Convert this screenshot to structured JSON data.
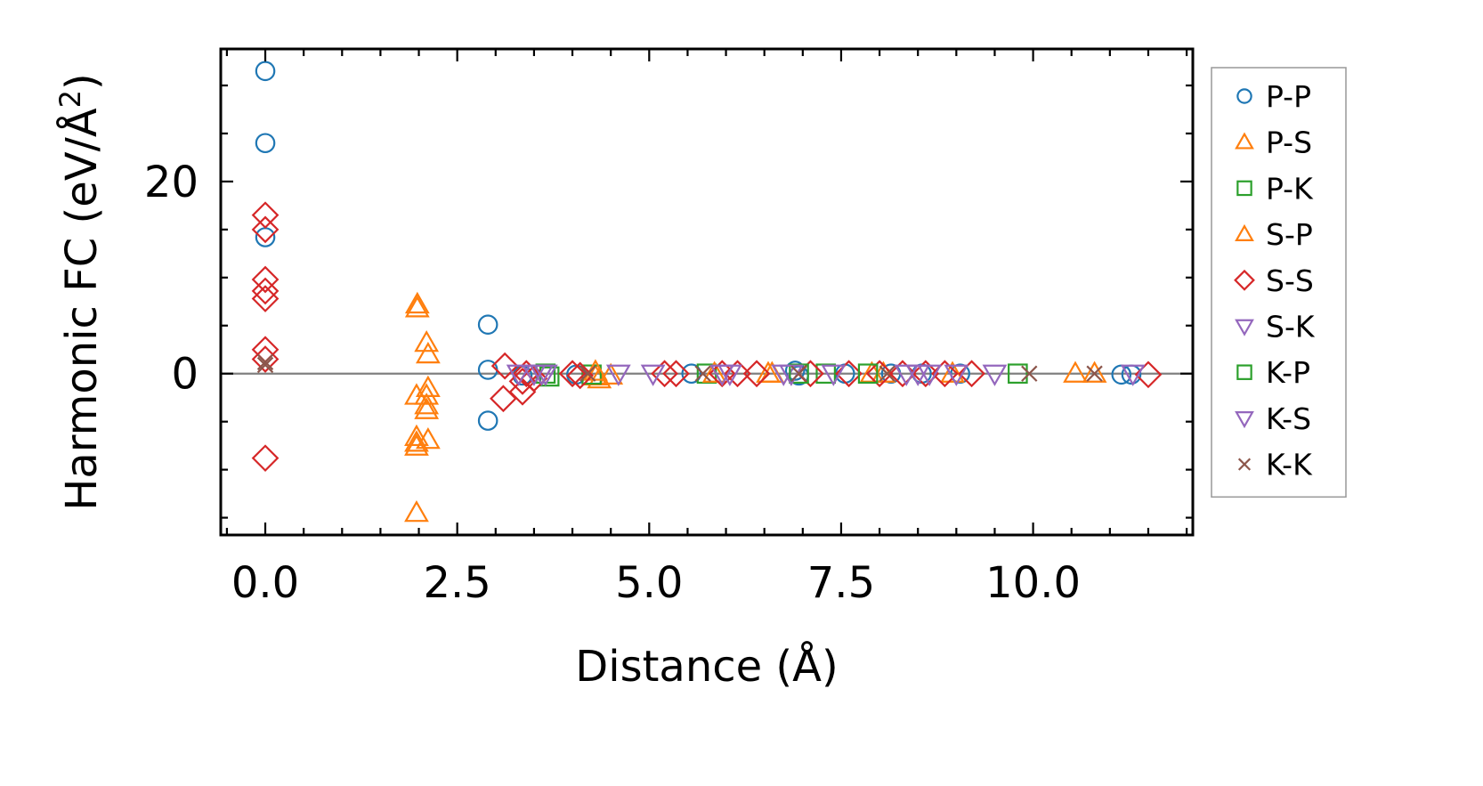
{
  "chart_data": {
    "type": "scatter",
    "title": "",
    "xlabel": "Distance (Å)",
    "ylabel": "Harmonic FC (eV/Å",
    "ylabel_sup": "2",
    "ylabel_close": ")",
    "xlim": [
      -0.58,
      12.08
    ],
    "ylim": [
      -16.8,
      33.8
    ],
    "x_ticks": [
      {
        "value": 0,
        "label": "0.0"
      },
      {
        "value": 2.5,
        "label": "2.5"
      },
      {
        "value": 5,
        "label": "5.0"
      },
      {
        "value": 7.5,
        "label": "7.5"
      },
      {
        "value": 10,
        "label": "10.0"
      }
    ],
    "y_ticks": [
      {
        "value": 0,
        "label": "0"
      },
      {
        "value": 20,
        "label": "20"
      }
    ],
    "x_minor_step": 0.5,
    "y_minor_step": 5,
    "zero_line": true,
    "grid": false,
    "legend_position": "outside-right",
    "series": [
      {
        "name": "P-P",
        "marker": "circle",
        "color": "#1f77b4",
        "points": [
          [
            0,
            31.5
          ],
          [
            0,
            24
          ],
          [
            0,
            14.2
          ],
          [
            2.9,
            5.1
          ],
          [
            2.9,
            0.4
          ],
          [
            2.9,
            -4.9
          ],
          [
            3.35,
            -0.2
          ],
          [
            4.05,
            -0.1
          ],
          [
            5.55,
            0
          ],
          [
            6.9,
            0.3
          ],
          [
            6.95,
            -0.2
          ],
          [
            7.55,
            0
          ],
          [
            8.15,
            0
          ],
          [
            8.55,
            0
          ],
          [
            9.05,
            0
          ],
          [
            11.15,
            -0.1
          ],
          [
            11.28,
            -0.1
          ]
        ]
      },
      {
        "name": "P-S",
        "marker": "triangle-up",
        "color": "#ff7f0e",
        "points": [
          [
            1.98,
            7.2
          ],
          [
            1.98,
            6.8
          ],
          [
            2.1,
            3.2
          ],
          [
            2.12,
            2
          ],
          [
            2.12,
            -1.5
          ],
          [
            2.1,
            -2.3
          ],
          [
            2.1,
            -3.3
          ],
          [
            2.1,
            -3.8
          ],
          [
            1.97,
            -2.3
          ],
          [
            1.97,
            -6.6
          ],
          [
            1.97,
            -7.2
          ],
          [
            1.97,
            -7.6
          ],
          [
            2.12,
            -6.9
          ],
          [
            1.97,
            -14.5
          ],
          [
            4.3,
            -0.3
          ],
          [
            4.35,
            -0.6
          ],
          [
            4.5,
            -0.2
          ],
          [
            6.55,
            0
          ],
          [
            7.9,
            0
          ],
          [
            10.55,
            0
          ]
        ]
      },
      {
        "name": "P-K",
        "marker": "square",
        "color": "#2ca02c",
        "points": [
          [
            3.7,
            -0.3
          ],
          [
            3.65,
            0
          ],
          [
            4.25,
            -0.1
          ],
          [
            5.75,
            0
          ],
          [
            7.3,
            0
          ],
          [
            9.8,
            0
          ]
        ]
      },
      {
        "name": "S-P",
        "marker": "triangle-up",
        "color": "#ff7f0e",
        "points": [
          [
            4.3,
            0.2
          ],
          [
            5.85,
            0
          ],
          [
            6.6,
            0
          ],
          [
            8.05,
            0
          ],
          [
            8.95,
            0
          ],
          [
            10.8,
            0
          ]
        ]
      },
      {
        "name": "S-S",
        "marker": "diamond",
        "color": "#d62728",
        "points": [
          [
            0,
            16.5
          ],
          [
            0,
            15
          ],
          [
            0,
            9.8
          ],
          [
            0,
            8.6
          ],
          [
            0,
            7.8
          ],
          [
            0,
            2.5
          ],
          [
            0,
            1.5
          ],
          [
            0,
            -8.8
          ],
          [
            3.12,
            0.8
          ],
          [
            3.1,
            -2.6
          ],
          [
            3.35,
            -1.9
          ],
          [
            3.35,
            -0.8
          ],
          [
            3.4,
            0
          ],
          [
            3.5,
            -0.5
          ],
          [
            4,
            0
          ],
          [
            4.1,
            -0.2
          ],
          [
            5.2,
            0
          ],
          [
            5.35,
            0
          ],
          [
            5.95,
            0
          ],
          [
            6.15,
            0
          ],
          [
            6.4,
            0
          ],
          [
            7.1,
            0
          ],
          [
            7.6,
            0
          ],
          [
            8.0,
            0
          ],
          [
            8.3,
            0
          ],
          [
            8.6,
            0
          ],
          [
            8.85,
            0
          ],
          [
            9.2,
            0
          ],
          [
            11.5,
            -0.1
          ]
        ]
      },
      {
        "name": "S-K",
        "marker": "triangle-down",
        "color": "#9467bd",
        "points": [
          [
            3.3,
            0
          ],
          [
            3.5,
            0
          ],
          [
            3.65,
            0
          ],
          [
            4.6,
            0
          ],
          [
            5.05,
            0
          ],
          [
            6.05,
            0
          ],
          [
            6.75,
            0
          ],
          [
            7.4,
            0
          ],
          [
            8.35,
            0
          ],
          [
            8.65,
            0
          ],
          [
            9.0,
            0
          ],
          [
            9.5,
            0
          ],
          [
            11.3,
            0
          ]
        ]
      },
      {
        "name": "K-P",
        "marker": "square",
        "color": "#2ca02c",
        "points": [
          [
            6.95,
            0
          ],
          [
            7.85,
            0
          ]
        ]
      },
      {
        "name": "K-S",
        "marker": "triangle-down",
        "color": "#9467bd",
        "points": [
          [
            3.6,
            0
          ],
          [
            5.95,
            0
          ],
          [
            6.85,
            0
          ],
          [
            8.5,
            0
          ]
        ]
      },
      {
        "name": "K-K",
        "marker": "x",
        "color": "#8c564b",
        "points": [
          [
            0,
            1.2
          ],
          [
            0,
            0.9
          ],
          [
            4.2,
            0
          ],
          [
            5.7,
            0
          ],
          [
            6.95,
            0
          ],
          [
            8.1,
            0
          ],
          [
            9.95,
            0
          ],
          [
            10.8,
            0
          ]
        ]
      }
    ]
  }
}
